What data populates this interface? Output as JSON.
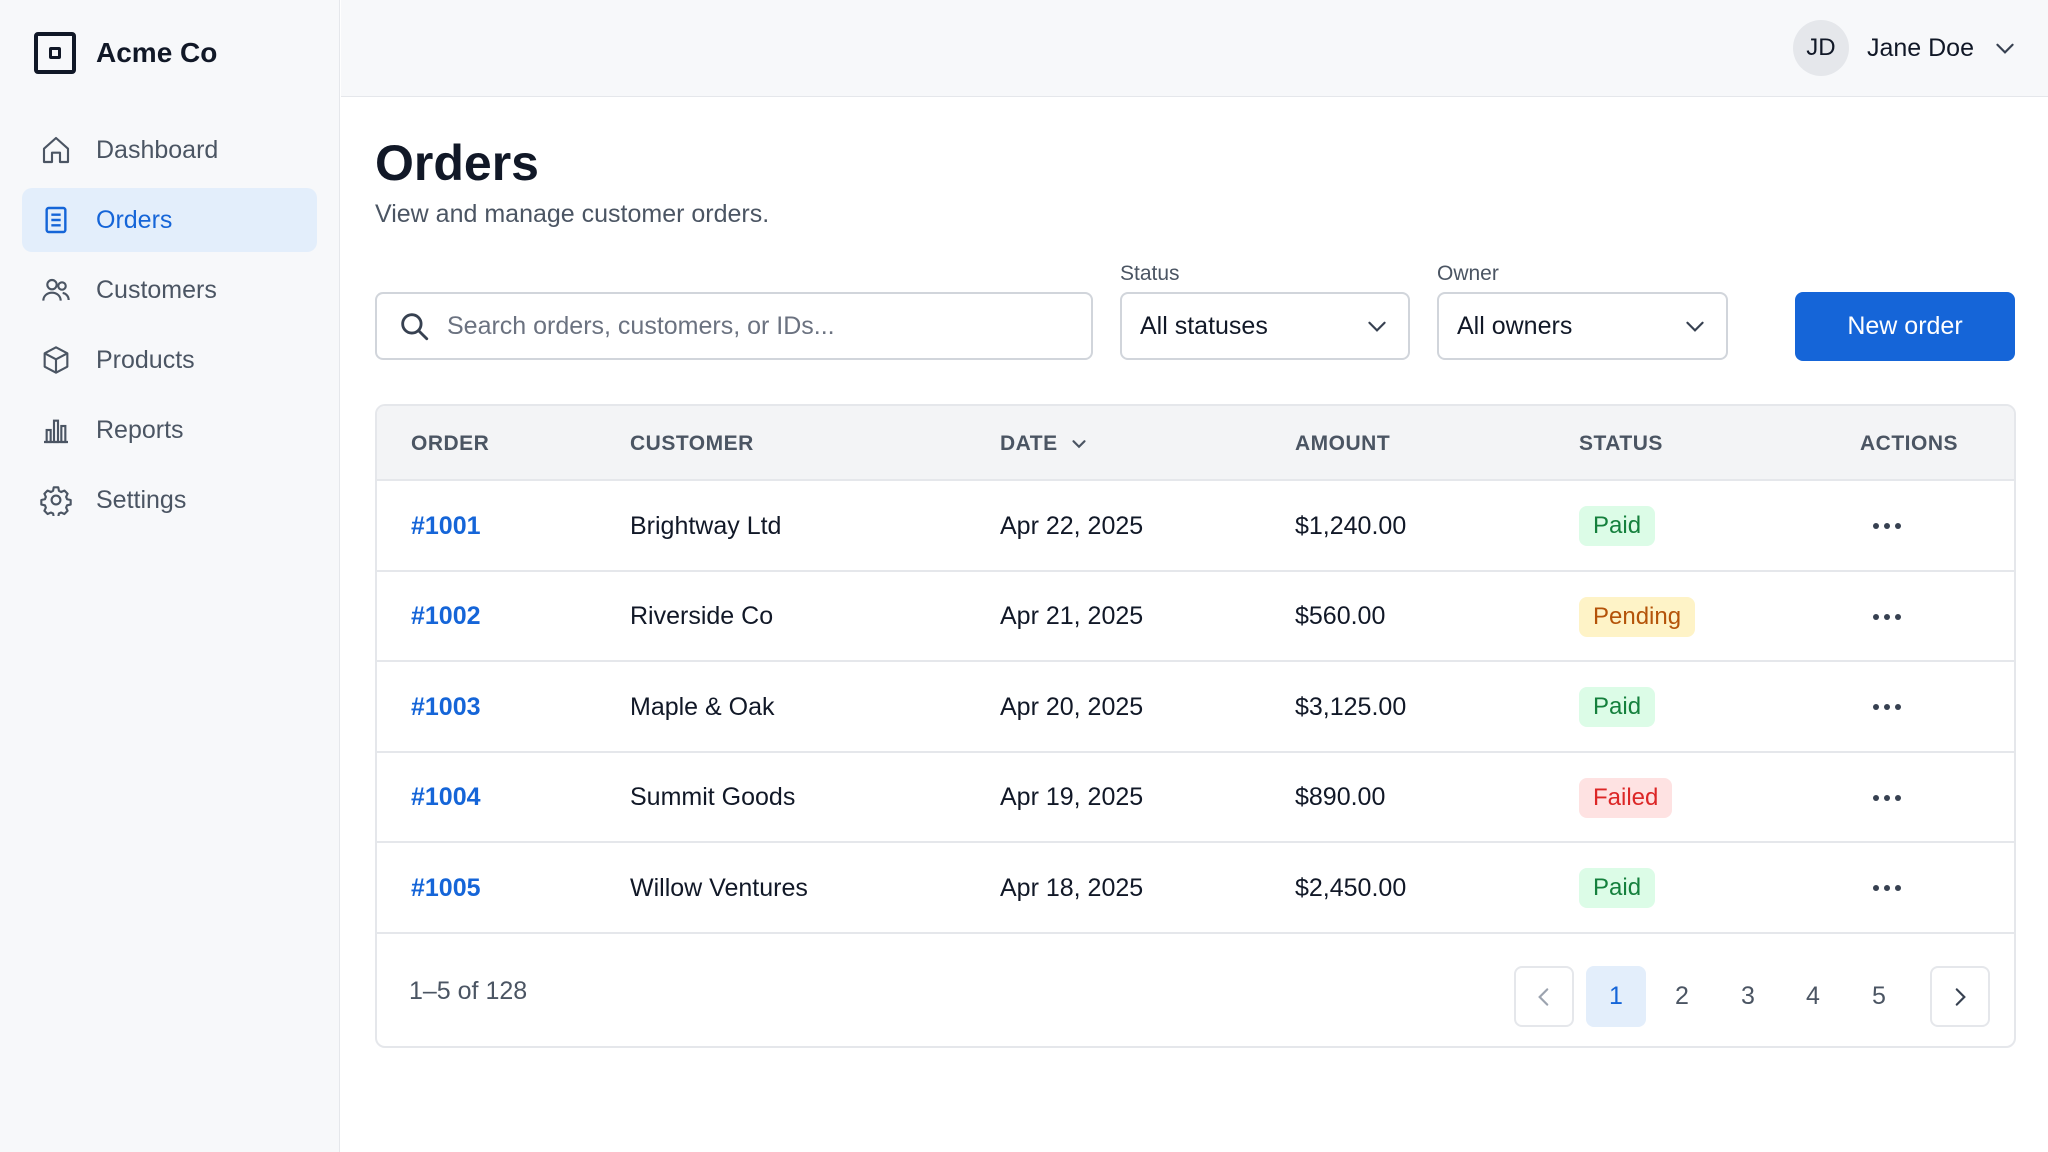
{
  "brand": {
    "name": "Acme Co"
  },
  "sidebar": {
    "items": [
      {
        "label": "Dashboard",
        "icon": "home-icon"
      },
      {
        "label": "Orders",
        "icon": "document-icon",
        "active": true
      },
      {
        "label": "Customers",
        "icon": "users-icon"
      },
      {
        "label": "Products",
        "icon": "box-icon"
      },
      {
        "label": "Reports",
        "icon": "bar-chart-icon"
      },
      {
        "label": "Settings",
        "icon": "gear-icon"
      }
    ]
  },
  "user": {
    "initials": "JD",
    "name": "Jane Doe"
  },
  "page": {
    "title": "Orders",
    "subtitle": "View and manage customer orders."
  },
  "search": {
    "placeholder": "Search orders, customers, or IDs...",
    "value": ""
  },
  "filters": {
    "status": {
      "label": "Status",
      "value": "All statuses"
    },
    "owner": {
      "label": "Owner",
      "value": "All owners"
    }
  },
  "actions": {
    "new_order": "New order"
  },
  "table": {
    "columns": [
      "ORDER",
      "CUSTOMER",
      "DATE",
      "AMOUNT",
      "STATUS",
      "ACTIONS"
    ],
    "rows": [
      {
        "id": "#1001",
        "customer": "Brightway Ltd",
        "date": "Apr 22, 2025",
        "amount": "$1,240.00",
        "status": "Paid"
      },
      {
        "id": "#1002",
        "customer": "Riverside Co",
        "date": "Apr 21, 2025",
        "amount": "$560.00",
        "status": "Pending"
      },
      {
        "id": "#1003",
        "customer": "Maple & Oak",
        "date": "Apr 20, 2025",
        "amount": "$3,125.00",
        "status": "Paid"
      },
      {
        "id": "#1004",
        "customer": "Summit Goods",
        "date": "Apr 19, 2025",
        "amount": "$890.00",
        "status": "Failed"
      },
      {
        "id": "#1005",
        "customer": "Willow Ventures",
        "date": "Apr 18, 2025",
        "amount": "$2,450.00",
        "status": "Paid"
      }
    ]
  },
  "pagination": {
    "range": "1–5 of 128",
    "pages": [
      "1",
      "2",
      "3",
      "4",
      "5"
    ],
    "current": "1"
  },
  "colors": {
    "accent": "#1565d8",
    "paid": "#15803d",
    "pending": "#b45309",
    "failed": "#dc2626"
  }
}
